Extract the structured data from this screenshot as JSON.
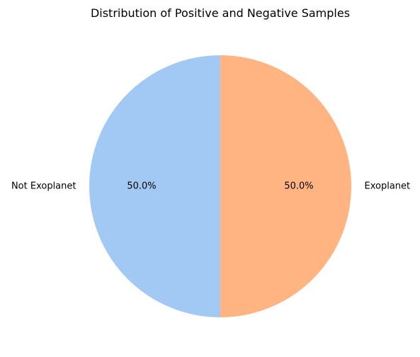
{
  "chart_data": {
    "type": "pie",
    "title": "Distribution of Positive and Negative Samples",
    "slices": [
      {
        "label": "Not Exoplanet",
        "value": 50.0,
        "percent_label": "50.0%",
        "color": "#a1c9f4"
      },
      {
        "label": "Exoplanet",
        "value": 50.0,
        "percent_label": "50.0%",
        "color": "#ffb482"
      }
    ],
    "start_angle_deg": 90,
    "direction": "counterclockwise",
    "legend": "none"
  }
}
